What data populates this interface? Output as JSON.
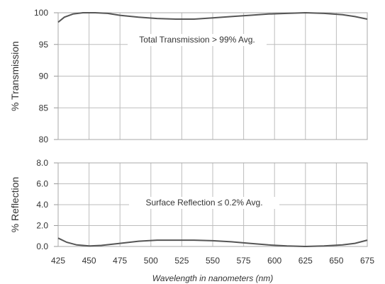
{
  "chart_data": [
    {
      "type": "line",
      "ylabel": "% Transmission",
      "annotation": "Total Transmission > 99% Avg.",
      "xlim": [
        425,
        675
      ],
      "ylim": [
        80,
        100
      ],
      "yticks": [
        "80",
        "85",
        "90",
        "95",
        "100"
      ],
      "grid": true,
      "series": [
        {
          "x": [
            425,
            430,
            437,
            445,
            455,
            465,
            475,
            490,
            505,
            520,
            535,
            550,
            565,
            580,
            595,
            610,
            625,
            640,
            655,
            665,
            675
          ],
          "values": [
            98.5,
            99.3,
            99.8,
            100.0,
            100.0,
            99.9,
            99.6,
            99.3,
            99.1,
            99.0,
            99.0,
            99.2,
            99.4,
            99.6,
            99.8,
            99.9,
            100.0,
            99.9,
            99.7,
            99.4,
            99.0
          ]
        }
      ]
    },
    {
      "type": "line",
      "ylabel": "% Reflection",
      "annotation": "Surface Reflection ≤ 0.2% Avg.",
      "xlabel": "Wavelength in nanometers (nm)",
      "xlim": [
        425,
        675
      ],
      "ylim": [
        0,
        8
      ],
      "yticks": [
        "0.0",
        "2.0",
        "4.0",
        "6.0",
        "8.0"
      ],
      "xticks": [
        "425",
        "450",
        "475",
        "500",
        "525",
        "550",
        "575",
        "600",
        "625",
        "650",
        "675"
      ],
      "grid": true,
      "series": [
        {
          "x": [
            425,
            432,
            440,
            450,
            460,
            475,
            490,
            505,
            520,
            535,
            550,
            565,
            580,
            595,
            610,
            625,
            640,
            655,
            665,
            675
          ],
          "values": [
            0.8,
            0.4,
            0.15,
            0.05,
            0.1,
            0.3,
            0.5,
            0.6,
            0.6,
            0.6,
            0.55,
            0.45,
            0.3,
            0.15,
            0.05,
            0.0,
            0.05,
            0.15,
            0.3,
            0.6
          ]
        }
      ]
    }
  ]
}
